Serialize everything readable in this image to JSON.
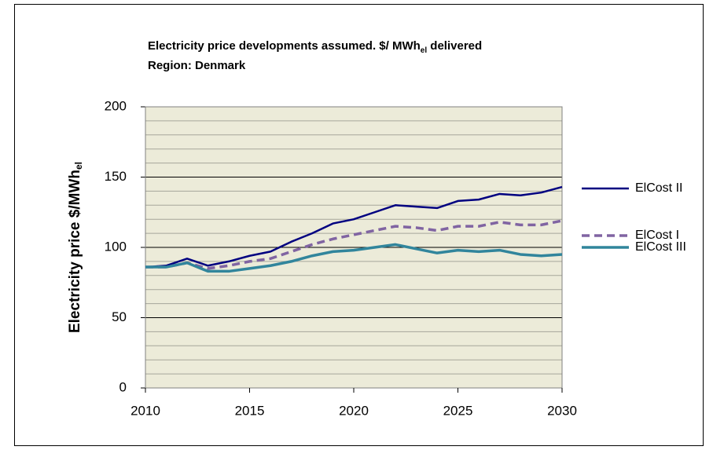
{
  "chart_data": {
    "type": "line",
    "title": "Electricity price developments assumed.   $/ MWh",
    "title_subscript": "el",
    "title_suffix": " delivered",
    "subtitle": "Region: Denmark",
    "y_label": "Electricity price  $/MWh",
    "y_label_subscript": "el",
    "x": [
      2010,
      2011,
      2012,
      2013,
      2014,
      2015,
      2016,
      2017,
      2018,
      2019,
      2020,
      2021,
      2022,
      2023,
      2024,
      2025,
      2026,
      2027,
      2028,
      2029,
      2030
    ],
    "series": [
      {
        "name": "ElCost II",
        "color": "#000080",
        "style": "solid",
        "width": 2.5,
        "values": [
          86,
          87,
          92,
          87,
          90,
          94,
          97,
          104,
          110,
          117,
          120,
          125,
          130,
          129,
          128,
          133,
          134,
          138,
          137,
          139,
          143
        ]
      },
      {
        "name": "ElCost I",
        "color": "#8064a2",
        "style": "dashed",
        "width": 3.5,
        "values": [
          86,
          86,
          89,
          85,
          87,
          90,
          92,
          97,
          102,
          106,
          109,
          112,
          115,
          114,
          112,
          115,
          115,
          118,
          116,
          116,
          119
        ]
      },
      {
        "name": "ElCost III",
        "color": "#31859c",
        "style": "solid",
        "width": 3.5,
        "values": [
          86,
          86,
          89,
          83,
          83,
          85,
          87,
          90,
          94,
          97,
          98,
          100,
          102,
          99,
          96,
          98,
          97,
          98,
          95,
          94,
          95
        ]
      }
    ],
    "xlim": [
      2010,
      2030
    ],
    "xticks": [
      2010,
      2015,
      2020,
      2025,
      2030
    ],
    "ylim": [
      0,
      200
    ],
    "yticks": [
      0,
      50,
      100,
      150,
      200
    ],
    "minor_grid": [
      10,
      20,
      30,
      40,
      60,
      70,
      80,
      90,
      110,
      120,
      130,
      140,
      160,
      170,
      180,
      190
    ],
    "grid": true,
    "background": "#ecebd9"
  }
}
